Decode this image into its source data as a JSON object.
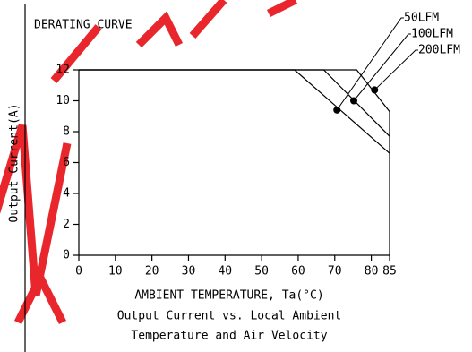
{
  "chart_data": {
    "type": "line",
    "title": "DERATING CURVE",
    "xlabel": "AMBIENT TEMPERATURE, Ta(°C)",
    "ylabel": "Output Current(A)",
    "caption": [
      "Output Current vs. Local Ambient",
      "Temperature and Air Velocity"
    ],
    "xlim": [
      0,
      85
    ],
    "ylim": [
      0,
      12
    ],
    "xticks": [
      0,
      10,
      20,
      30,
      40,
      50,
      60,
      70,
      80,
      85
    ],
    "yticks": [
      0,
      2,
      4,
      6,
      8,
      10,
      12
    ],
    "series": [
      {
        "name": "50LFM",
        "color": "#000000",
        "x": [
          0,
          59,
          85
        ],
        "values": [
          12,
          12,
          6.6
        ],
        "marker_x": 70.6,
        "marker_value": 9.4
      },
      {
        "name": "100LFM",
        "color": "#000000",
        "x": [
          0,
          67,
          85
        ],
        "values": [
          12,
          12,
          7.7
        ],
        "marker_x": 75.2,
        "marker_value": 10.0
      },
      {
        "name": "200LFM",
        "color": "#000000",
        "x": [
          0,
          76,
          85
        ],
        "values": [
          12,
          12,
          9.3
        ],
        "marker_x": 80.9,
        "marker_value": 10.7
      }
    ]
  }
}
